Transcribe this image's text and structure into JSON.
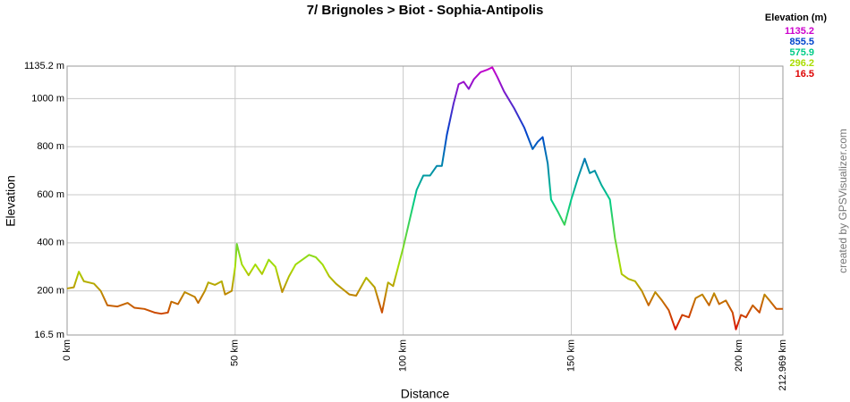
{
  "chart_data": {
    "type": "line",
    "title": "7/ Brignoles > Biot - Sophia-Antipolis",
    "x_label": "Distance",
    "y_label": "Elevation",
    "credit": "created by GPSVisualizer.com",
    "x": [
      0,
      2,
      3.5,
      5,
      8,
      10,
      12,
      15,
      18,
      20,
      23,
      26,
      28,
      30,
      31,
      33,
      35,
      38,
      39,
      41,
      42,
      44,
      46,
      47,
      49,
      50,
      50.5,
      52,
      54,
      56,
      58,
      60,
      62,
      64,
      66,
      68,
      70,
      72,
      74,
      76,
      78,
      80,
      84,
      86,
      89,
      91.5,
      93.7,
      95.5,
      97,
      100,
      102,
      104,
      106,
      108,
      110,
      111.5,
      113,
      115,
      116.5,
      118,
      119.5,
      121,
      123,
      125,
      126.5,
      128,
      130,
      133,
      136,
      138.5,
      140,
      141.5,
      143,
      144,
      146,
      148,
      150,
      152,
      154,
      155.5,
      157,
      159,
      161.5,
      163,
      165,
      167,
      169,
      171,
      173,
      175,
      177,
      179,
      181,
      183,
      185,
      187,
      189,
      191,
      192.5,
      194,
      196,
      198,
      199,
      200.5,
      202,
      204,
      206,
      207.5,
      209,
      211,
      212.969
    ],
    "series": [
      {
        "values": [
          210,
          215,
          280,
          240,
          230,
          200,
          140,
          135,
          150,
          130,
          125,
          110,
          105,
          110,
          155,
          145,
          195,
          175,
          150,
          200,
          235,
          225,
          240,
          185,
          200,
          300,
          395,
          310,
          265,
          310,
          270,
          330,
          300,
          195,
          260,
          310,
          330,
          350,
          340,
          310,
          260,
          230,
          185,
          180,
          255,
          215,
          110,
          235,
          220,
          380,
          500,
          620,
          680,
          680,
          720,
          720,
          850,
          980,
          1060,
          1070,
          1040,
          1080,
          1110,
          1120,
          1130,
          1090,
          1030,
          960,
          880,
          790,
          820,
          840,
          730,
          580,
          530,
          475,
          580,
          670,
          750,
          690,
          700,
          640,
          580,
          420,
          270,
          250,
          240,
          200,
          140,
          195,
          160,
          120,
          40,
          100,
          90,
          170,
          185,
          140,
          190,
          145,
          160,
          110,
          40,
          100,
          90,
          140,
          110,
          185,
          160,
          125,
          125
        ]
      }
    ],
    "xlim": [
      0,
      212.969
    ],
    "xticks": [
      {
        "value": 0,
        "label": "0 km"
      },
      {
        "value": 50,
        "label": "50 km"
      },
      {
        "value": 100,
        "label": "100 km"
      },
      {
        "value": 150,
        "label": "150 km"
      },
      {
        "value": 200,
        "label": "200 km"
      },
      {
        "value": 212.969,
        "label": "212.969 km"
      }
    ],
    "ylim": [
      16.5,
      1135.2
    ],
    "yticks": [
      {
        "value": 16.5,
        "label": "16.5 m"
      },
      {
        "value": 200,
        "label": "200 m"
      },
      {
        "value": 400,
        "label": "400 m"
      },
      {
        "value": 600,
        "label": "600 m"
      },
      {
        "value": 800,
        "label": "800 m"
      },
      {
        "value": 1000,
        "label": "1000 m"
      },
      {
        "value": 1135.2,
        "label": "1135.2 m"
      }
    ],
    "grid": true,
    "color_legend": {
      "title": "Elevation (m)",
      "values": [
        1135.2,
        855.5,
        575.9,
        296.2,
        16.5
      ],
      "colors": [
        "#cc00cc",
        "#0044cc",
        "#00cc88",
        "#aadd00",
        "#dd0000"
      ]
    }
  }
}
